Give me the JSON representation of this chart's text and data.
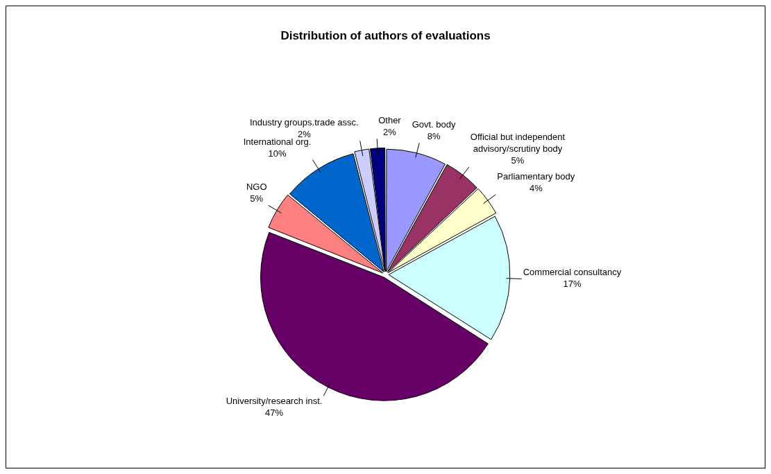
{
  "chart_data": {
    "type": "pie",
    "title": "Distribution of authors of evaluations",
    "categories": [
      "Govt. body",
      "Official but independent advisory/scrutiny body",
      "Parliamentary body",
      "Commercial consultancy",
      "University/research inst.",
      "NGO",
      "International org.",
      "Industry groups.trade assc.",
      "Other"
    ],
    "values": [
      8,
      5,
      4,
      17,
      47,
      5,
      10,
      2,
      2
    ],
    "value_labels": [
      "8%",
      "5%",
      "4%",
      "17%",
      "47%",
      "5%",
      "10%",
      "2%",
      "2%"
    ],
    "colors": [
      "#9999ff",
      "#993366",
      "#ffffcc",
      "#ccffff",
      "#660066",
      "#ff8080",
      "#0066cc",
      "#ccccff",
      "#000080"
    ],
    "legend": false
  }
}
